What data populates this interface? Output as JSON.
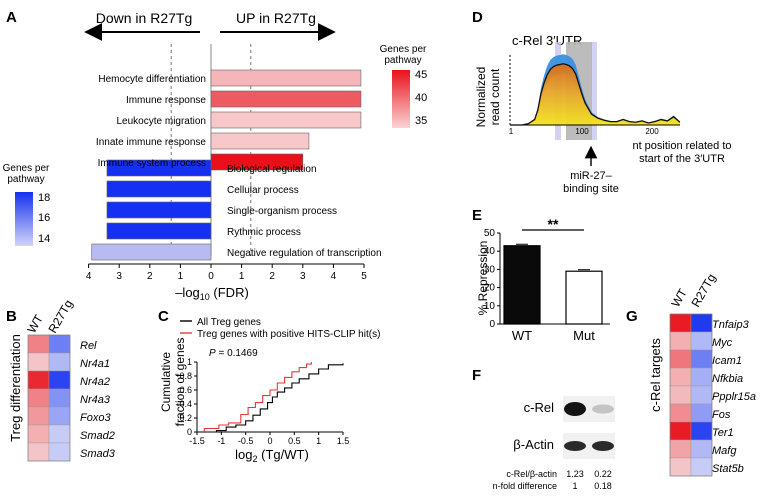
{
  "panels": {
    "A": "A",
    "B": "B",
    "C": "C",
    "D": "D",
    "E": "E",
    "F": "F",
    "G": "G"
  },
  "colors": {
    "red_strong": "#e8111b",
    "red_light": "#f6b9bd",
    "blue_strong": "#1530f0",
    "blue_light": "#b0b4ee",
    "bar_black": "#0a0a0a"
  },
  "chart_data": [
    {
      "panel": "A",
      "type": "bar",
      "orientation": "horizontal",
      "down_label": "Down in R27Tg",
      "up_label": "UP in R27Tg",
      "xlabel_main": "–log",
      "xlabel_sub": "10",
      "xlabel_tail": " (FDR)",
      "xlim": [
        0,
        5
      ],
      "xticks_left": [
        "4",
        "3",
        "2",
        "1",
        "0"
      ],
      "xticks_right": [
        "1",
        "2",
        "3",
        "4",
        "5"
      ],
      "threshold_neglog10_fdr": 1.3,
      "up_pathways": [
        {
          "name": "Hemocyte differentiation",
          "value": 4.9,
          "genes": 36
        },
        {
          "name": "Immune response",
          "value": 4.9,
          "genes": 41
        },
        {
          "name": "Leukocyte migration",
          "value": 4.9,
          "genes": 35
        },
        {
          "name": "Innate immune response",
          "value": 3.2,
          "genes": 35
        },
        {
          "name": "Immune system process",
          "value": 3.0,
          "genes": 45
        }
      ],
      "down_pathways": [
        {
          "name": "Biological regulation",
          "value": 3.4,
          "genes": 18
        },
        {
          "name": "Cellular process",
          "value": 3.4,
          "genes": 18
        },
        {
          "name": "Single-organism process",
          "value": 3.4,
          "genes": 18
        },
        {
          "name": "Rythmic process",
          "value": 3.4,
          "genes": 18
        },
        {
          "name": "Negative regulation of transcription",
          "value": 3.9,
          "genes": 14
        }
      ],
      "legend_up": {
        "title_line1": "Genes per",
        "title_line2": "pathway",
        "ticks": [
          "45",
          "40",
          "35"
        ]
      },
      "legend_down": {
        "title_line1": "Genes per",
        "title_line2": "pathway",
        "ticks": [
          "18",
          "16",
          "14"
        ]
      }
    },
    {
      "panel": "B",
      "type": "heatmap",
      "ylabel": "Treg differentiation",
      "columns": [
        "WT",
        "R27Tg"
      ],
      "rows": [
        {
          "gene": "Rel",
          "wt": 0.5,
          "r27": -0.6
        },
        {
          "gene": "Nr4a1",
          "wt": 0.2,
          "r27": -0.3
        },
        {
          "gene": "Nr4a2",
          "wt": 0.9,
          "r27": -0.9
        },
        {
          "gene": "Nr4a3",
          "wt": 0.5,
          "r27": -0.5
        },
        {
          "gene": "Foxo3",
          "wt": 0.4,
          "r27": -0.4
        },
        {
          "gene": "Smad2",
          "wt": 0.3,
          "r27": -0.2
        },
        {
          "gene": "Smad3",
          "wt": 0.2,
          "r27": -0.2
        }
      ]
    },
    {
      "panel": "C",
      "type": "line",
      "legend": [
        "All Treg genes",
        "Treg genes with positive HITS-CLIP hit(s)"
      ],
      "pvalue_label": "P",
      "pvalue": "= 0.1469",
      "ylabel_line1": "Cumulative",
      "ylabel_line2": "fraction of genes",
      "xlabel_main": "log",
      "xlabel_sub": "2",
      "xlabel_tail": " (Tg/WT)",
      "xlim": [
        -1.5,
        1.5
      ],
      "ylim": [
        0,
        1
      ],
      "xticks": [
        "-1.5",
        "-1",
        "-0.5",
        "0",
        "0.5",
        "1",
        "1.5"
      ],
      "yticks": [
        "0",
        "0.2",
        "0.4",
        "0.6",
        "0.8",
        "1"
      ],
      "series": [
        {
          "name": "All Treg genes",
          "color": "#000000",
          "points": [
            [
              -1.5,
              0
            ],
            [
              -1.1,
              0.02
            ],
            [
              -0.9,
              0.07
            ],
            [
              -0.7,
              0.1
            ],
            [
              -0.5,
              0.16
            ],
            [
              -0.35,
              0.24
            ],
            [
              -0.2,
              0.33
            ],
            [
              -0.05,
              0.42
            ],
            [
              0.05,
              0.5
            ],
            [
              0.15,
              0.57
            ],
            [
              0.3,
              0.63
            ],
            [
              0.45,
              0.7
            ],
            [
              0.6,
              0.76
            ],
            [
              0.8,
              0.83
            ],
            [
              1.0,
              0.9
            ],
            [
              1.2,
              0.96
            ],
            [
              1.5,
              0.98
            ]
          ]
        },
        {
          "name": "Treg genes with positive HITS-CLIP hit(s)",
          "color": "#e33a3a",
          "points": [
            [
              -1.35,
              0
            ],
            [
              -1.35,
              0.05
            ],
            [
              -1.05,
              0.1
            ],
            [
              -0.85,
              0.13
            ],
            [
              -0.6,
              0.25
            ],
            [
              -0.45,
              0.35
            ],
            [
              -0.3,
              0.42
            ],
            [
              -0.15,
              0.52
            ],
            [
              0.0,
              0.6
            ],
            [
              0.15,
              0.7
            ],
            [
              0.3,
              0.78
            ],
            [
              0.45,
              0.86
            ],
            [
              0.6,
              0.92
            ],
            [
              0.75,
              0.97
            ],
            [
              0.85,
              1.0
            ]
          ]
        }
      ]
    },
    {
      "panel": "D",
      "type": "area",
      "title": "c-Rel 3′UTR",
      "ylabel_line1": "Normalized",
      "ylabel_line2": "read count",
      "xticks": [
        "1",
        "100",
        "200"
      ],
      "xlabel_line1": "nt position related to",
      "xlabel_line2": "start of the 3′UTR",
      "site_line1": "miR-27–",
      "site_line2": "binding site",
      "xlim": [
        1,
        270
      ],
      "profile_x": [
        1,
        20,
        30,
        40,
        45,
        50,
        55,
        60,
        65,
        70,
        75,
        80,
        85,
        90,
        95,
        100,
        105,
        110,
        115,
        120,
        125,
        130,
        140,
        150,
        160,
        170,
        180,
        190,
        200,
        210,
        220,
        230,
        240,
        250,
        260,
        270
      ],
      "profile_y": [
        0,
        0,
        0.02,
        0.08,
        0.22,
        0.46,
        0.62,
        0.74,
        0.82,
        0.86,
        0.88,
        0.89,
        0.9,
        0.89,
        0.87,
        0.83,
        0.75,
        0.6,
        0.45,
        0.32,
        0.24,
        0.16,
        0.1,
        0.07,
        0.05,
        0.05,
        0.08,
        0.05,
        0.04,
        0.06,
        0.03,
        0.05,
        0.08,
        0.06,
        0.12,
        0.04
      ]
    },
    {
      "panel": "E",
      "type": "bar",
      "ylabel": "% Repression",
      "categories": [
        "WT",
        "Mut"
      ],
      "values": [
        43,
        29
      ],
      "ylim": [
        0,
        50
      ],
      "yticks": [
        "0",
        "10",
        "20",
        "30",
        "40",
        "50"
      ],
      "significance": "**"
    },
    {
      "panel": "F",
      "type": "table",
      "labels": {
        "crel": "c-Rel",
        "actin": "β-Actin",
        "ratio": "c-Rel/β-actin",
        "fold": "n-fold difference"
      },
      "ratio_values": [
        "1.23",
        "0.22"
      ],
      "fold_values": [
        "1",
        "0.18"
      ],
      "crel_intensity": [
        1.0,
        0.18
      ]
    },
    {
      "panel": "G",
      "type": "heatmap",
      "ylabel": "c-Rel targets",
      "columns": [
        "WT",
        "R27Tg"
      ],
      "rows": [
        {
          "gene": "Tnfaip3",
          "wt": 0.95,
          "r27": -0.95
        },
        {
          "gene": "Myc",
          "wt": 0.3,
          "r27": -0.3
        },
        {
          "gene": "Icam1",
          "wt": 0.55,
          "r27": -0.6
        },
        {
          "gene": "Nfkbia",
          "wt": 0.3,
          "r27": -0.35
        },
        {
          "gene": "Ppplr15a",
          "wt": 0.25,
          "r27": -0.3
        },
        {
          "gene": "Fos",
          "wt": 0.45,
          "r27": -0.45
        },
        {
          "gene": "Ter1",
          "wt": 0.95,
          "r27": -0.9
        },
        {
          "gene": "Mafg",
          "wt": 0.35,
          "r27": -0.3
        },
        {
          "gene": "Stat5b",
          "wt": 0.2,
          "r27": -0.2
        }
      ]
    }
  ]
}
